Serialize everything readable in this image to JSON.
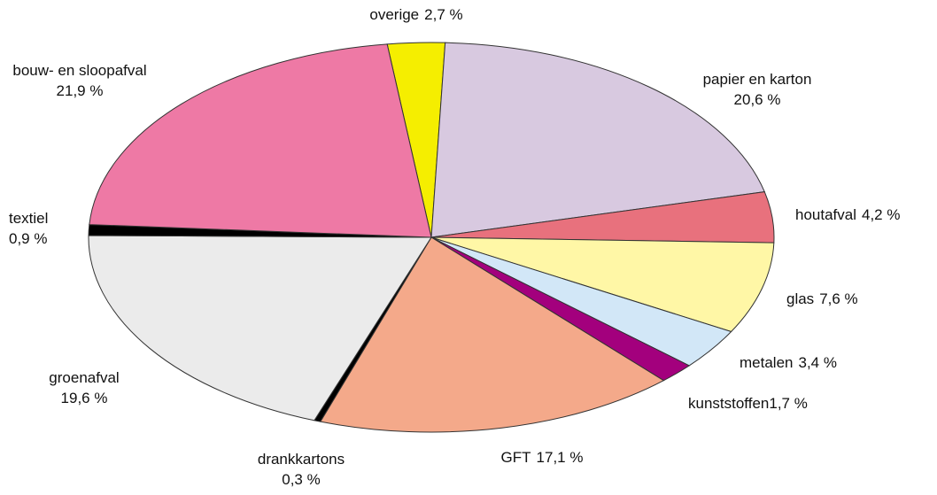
{
  "chart_data": {
    "type": "pie",
    "categories": [
      "overige",
      "papier en karton",
      "houtafval",
      "glas",
      "metalen",
      "kunststoffen",
      "GFT",
      "drankkartons",
      "groenafval",
      "textiel",
      "bouw- en sloopafval"
    ],
    "values": [
      2.7,
      20.6,
      4.2,
      7.6,
      3.4,
      1.7,
      17.1,
      0.3,
      19.6,
      0.9,
      21.9
    ],
    "value_labels": [
      "2,7 %",
      "20,6 %",
      "4,2 %",
      "7,6 %",
      "3,4 %",
      "1,7 %",
      "17,1 %",
      "0,3 %",
      "19,6 %",
      "0,9 %",
      "21,9 %"
    ],
    "colors": [
      "#f5ee00",
      "#d8c9e0",
      "#e8717d",
      "#fff7a6",
      "#d2e7f7",
      "#a3007d",
      "#f4a98a",
      "#000000",
      "#ebebeb",
      "#000000",
      "#ee79a5"
    ]
  }
}
